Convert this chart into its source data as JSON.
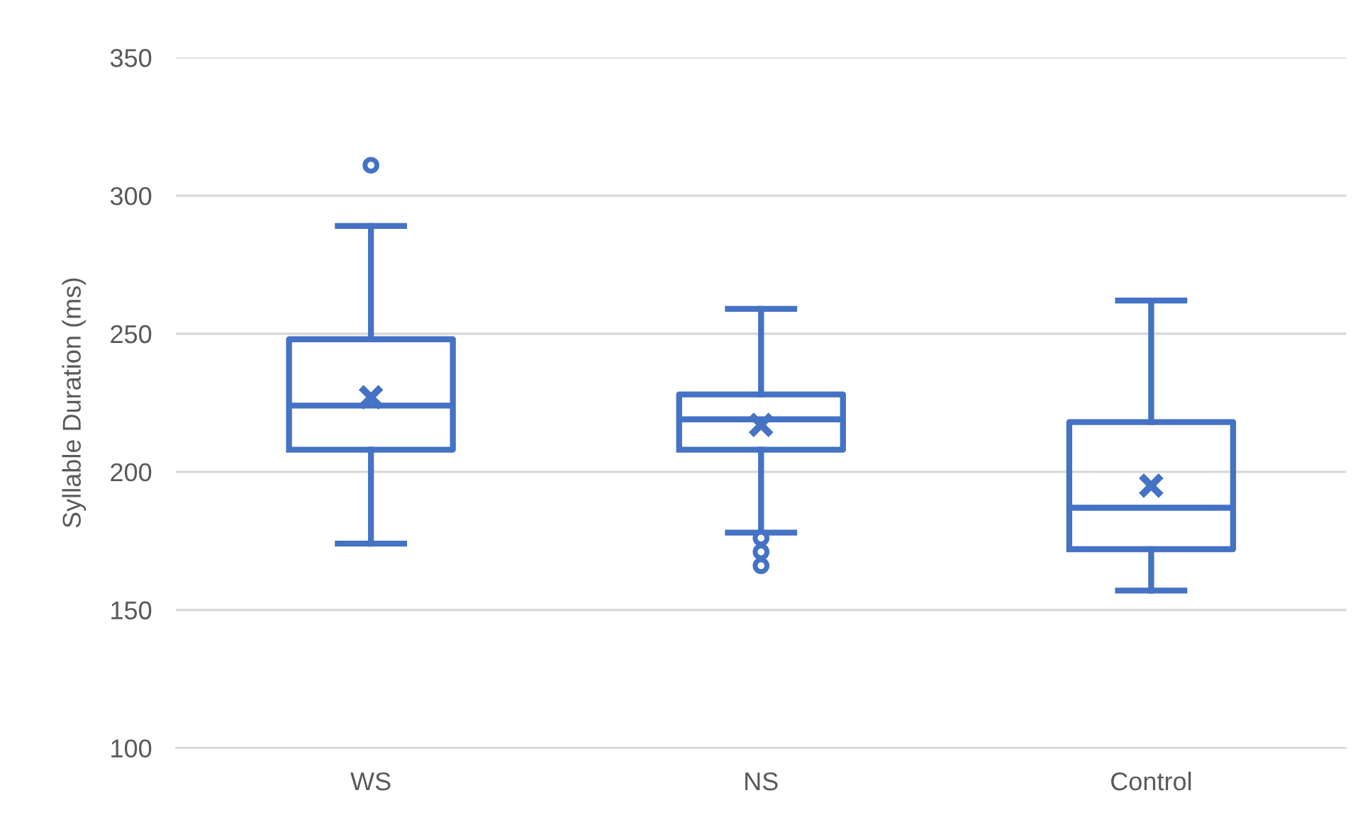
{
  "chart_data": {
    "type": "box",
    "ylabel": "Syllable Duration (ms)",
    "categories": [
      "WS",
      "NS",
      "Control"
    ],
    "color": "#4472c4",
    "boxes": [
      {
        "low": 174,
        "q1": 208,
        "median": 224,
        "q3": 248,
        "high": 289,
        "mean": 227,
        "outliers": [
          311
        ]
      },
      {
        "low": 178,
        "q1": 208,
        "median": 219,
        "q3": 228,
        "high": 259,
        "mean": 217,
        "outliers": [
          176,
          171,
          166
        ]
      },
      {
        "low": 157,
        "q1": 172,
        "median": 187,
        "q3": 218,
        "high": 262,
        "mean": 195
      }
    ],
    "ylim": [
      100,
      350
    ],
    "yticks": [
      100,
      150,
      200,
      250,
      300,
      350
    ],
    "grid": "y"
  }
}
